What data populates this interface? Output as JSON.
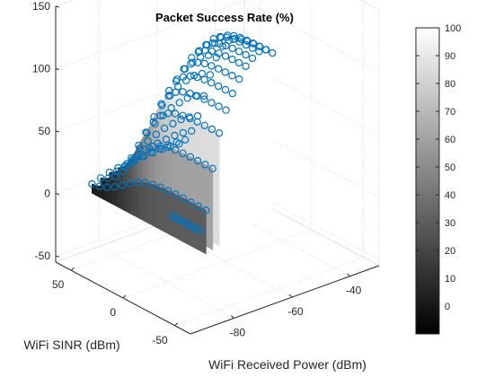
{
  "chart_data": {
    "type": "surface",
    "title": "Packet Success Rate (%)",
    "xlabel": "WiFi SINR (dBm)",
    "ylabel": "WiFi Received Power (dBm)",
    "zlabel": "",
    "xlim": [
      -65,
      65
    ],
    "ylim": [
      -95,
      -30
    ],
    "zlim": [
      -55,
      150
    ],
    "x_ticks": [
      -50,
      0,
      50
    ],
    "y_ticks": [
      -80,
      -60,
      -40
    ],
    "z_ticks": [
      -50,
      0,
      50,
      100,
      150
    ],
    "grid": true,
    "colormap": "gray",
    "colorbar": {
      "range": [
        -10,
        100
      ],
      "ticks": [
        0,
        10,
        20,
        30,
        40,
        50,
        60,
        70,
        80,
        90,
        100
      ],
      "placement": "right"
    },
    "marker_color": "#0072BD",
    "surface_rows": [
      {
        "power": -85,
        "sinr_start": -52,
        "sinr_end": 58,
        "max_psr": 30
      },
      {
        "power": -82,
        "sinr_start": -50,
        "sinr_end": 58,
        "max_psr": 60
      },
      {
        "power": -79,
        "sinr_start": -48,
        "sinr_end": 58,
        "max_psr": 85
      },
      {
        "power": -76,
        "sinr_start": -46,
        "sinr_end": 58,
        "max_psr": 100
      },
      {
        "power": -73,
        "sinr_start": -44,
        "sinr_end": 58,
        "max_psr": 110
      },
      {
        "power": -70,
        "sinr_start": -42,
        "sinr_end": 58,
        "max_psr": 118
      },
      {
        "power": -67,
        "sinr_start": -40,
        "sinr_end": 58,
        "max_psr": 125
      },
      {
        "power": -64,
        "sinr_start": -38,
        "sinr_end": 58,
        "max_psr": 128
      },
      {
        "power": -61,
        "sinr_start": -36,
        "sinr_end": 58,
        "max_psr": 130
      },
      {
        "power": -58,
        "sinr_start": -34,
        "sinr_end": 58,
        "max_psr": 128
      },
      {
        "power": -55,
        "sinr_start": -32,
        "sinr_end": 58,
        "max_psr": 122
      }
    ]
  }
}
